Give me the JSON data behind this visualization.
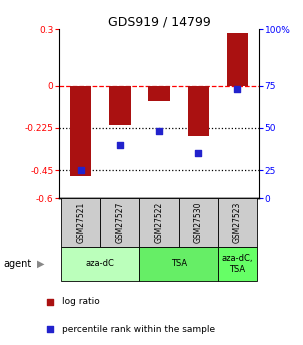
{
  "title": "GDS919 / 14799",
  "samples": [
    "GSM27521",
    "GSM27527",
    "GSM27522",
    "GSM27530",
    "GSM27523"
  ],
  "log_ratios": [
    -0.48,
    -0.21,
    -0.08,
    -0.27,
    0.28
  ],
  "percentile_ranks": [
    25,
    40,
    48,
    35,
    73
  ],
  "left_yticks": [
    0.3,
    0.0,
    -0.225,
    -0.45,
    -0.6
  ],
  "right_yticks": [
    100,
    75,
    50,
    25,
    0
  ],
  "left_ytick_labels": [
    "0.3",
    "0",
    "-0.225",
    "-0.45",
    "-0.6"
  ],
  "right_ytick_labels": [
    "100%",
    "75",
    "50",
    "25",
    "0"
  ],
  "hlines": [
    0.0,
    -0.225,
    -0.45
  ],
  "bar_color": "#aa1111",
  "scatter_color": "#2222cc",
  "agent_groups": [
    {
      "label": "aza-dC",
      "spans": [
        0,
        1
      ],
      "color": "#bbffbb"
    },
    {
      "label": "TSA",
      "spans": [
        2,
        3
      ],
      "color": "#66ee66"
    },
    {
      "label": "aza-dC,\nTSA",
      "spans": [
        4,
        4
      ],
      "color": "#66ff66"
    }
  ],
  "sample_box_color": "#cccccc",
  "legend_labels": [
    "log ratio",
    "percentile rank within the sample"
  ],
  "legend_colors": [
    "#aa1111",
    "#2222cc"
  ],
  "bar_width": 0.55
}
